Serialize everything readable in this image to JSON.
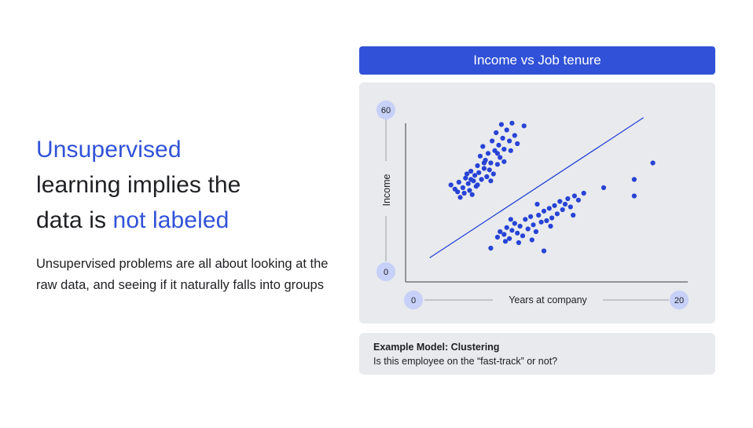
{
  "slide": {
    "heading_line1": "Unsupervised",
    "heading_line2": "learning implies the",
    "heading_line3_a": "data is ",
    "heading_line3_b": "not labeled",
    "body": "Unsupervised problems are all about looking at the raw data, and seeing if it naturally falls into groups"
  },
  "chart_header": "Income vs Job tenure",
  "caption": {
    "title": "Example Model: Clustering",
    "text": "Is this employee on the “fast-track” or not?"
  },
  "colors": {
    "accent": "#3152d8",
    "panel": "#e8eaed",
    "point": "#2743d6",
    "badge": "#c7d0f8"
  },
  "chart_data": {
    "type": "scatter",
    "xlabel": "Years at company",
    "ylabel": "Income",
    "xlim": [
      0,
      20
    ],
    "ylim": [
      0,
      60
    ],
    "x_ticks": [
      "0",
      "20"
    ],
    "y_ticks": [
      "0",
      "60"
    ],
    "grid": false,
    "legend": "none",
    "separator_line": {
      "x": [
        1.4,
        17.5
      ],
      "y": [
        6.5,
        57.5
      ]
    },
    "series": [
      {
        "points": [
          [
            3.0,
            33.0
          ],
          [
            3.3,
            31.5
          ],
          [
            3.5,
            30.5
          ],
          [
            3.6,
            34.0
          ],
          [
            3.7,
            28.5
          ],
          [
            3.9,
            32.0
          ],
          [
            4.0,
            30.0
          ],
          [
            4.1,
            35.5
          ],
          [
            4.2,
            37.0
          ],
          [
            4.3,
            33.5
          ],
          [
            4.4,
            31.0
          ],
          [
            4.5,
            38.0
          ],
          [
            4.6,
            29.5
          ],
          [
            4.7,
            34.5
          ],
          [
            4.8,
            36.5
          ],
          [
            4.9,
            32.5
          ],
          [
            5.0,
            40.0
          ],
          [
            5.1,
            37.5
          ],
          [
            5.2,
            43.5
          ],
          [
            5.3,
            35.0
          ],
          [
            5.4,
            47.0
          ],
          [
            5.5,
            39.0
          ],
          [
            5.6,
            42.0
          ],
          [
            5.7,
            36.0
          ],
          [
            5.8,
            44.5
          ],
          [
            5.9,
            38.5
          ],
          [
            6.0,
            41.0
          ],
          [
            6.1,
            49.0
          ],
          [
            6.2,
            37.0
          ],
          [
            6.3,
            45.5
          ],
          [
            6.4,
            52.0
          ],
          [
            6.5,
            40.5
          ],
          [
            6.6,
            47.5
          ],
          [
            6.7,
            43.0
          ],
          [
            6.8,
            55.0
          ],
          [
            6.9,
            50.0
          ],
          [
            7.0,
            46.0
          ],
          [
            7.2,
            53.0
          ],
          [
            7.4,
            49.0
          ],
          [
            7.6,
            55.5
          ],
          [
            7.8,
            51.0
          ],
          [
            8.0,
            48.0
          ],
          [
            4.5,
            35.0
          ],
          [
            5.0,
            33.0
          ],
          [
            5.5,
            41.0
          ],
          [
            6.0,
            34.5
          ],
          [
            6.5,
            44.5
          ],
          [
            7.0,
            41.5
          ],
          [
            7.5,
            45.5
          ],
          [
            8.5,
            54.5
          ]
        ]
      },
      {
        "points": [
          [
            6.5,
            14.0
          ],
          [
            6.7,
            16.0
          ],
          [
            7.0,
            15.0
          ],
          [
            7.2,
            17.5
          ],
          [
            7.4,
            13.5
          ],
          [
            7.6,
            16.5
          ],
          [
            7.8,
            19.0
          ],
          [
            8.0,
            15.5
          ],
          [
            8.2,
            18.0
          ],
          [
            8.4,
            14.5
          ],
          [
            8.6,
            20.5
          ],
          [
            8.8,
            17.0
          ],
          [
            9.0,
            21.5
          ],
          [
            9.2,
            18.5
          ],
          [
            9.4,
            16.0
          ],
          [
            9.6,
            22.0
          ],
          [
            9.8,
            19.5
          ],
          [
            10.0,
            23.5
          ],
          [
            10.2,
            20.0
          ],
          [
            10.4,
            24.5
          ],
          [
            10.6,
            21.0
          ],
          [
            10.8,
            25.5
          ],
          [
            11.0,
            22.5
          ],
          [
            11.2,
            27.0
          ],
          [
            11.4,
            24.0
          ],
          [
            11.6,
            26.0
          ],
          [
            11.8,
            28.0
          ],
          [
            12.0,
            25.0
          ],
          [
            12.3,
            29.0
          ],
          [
            12.6,
            27.5
          ],
          [
            13.0,
            30.0
          ],
          [
            7.1,
            12.5
          ],
          [
            8.1,
            12.0
          ],
          [
            9.1,
            13.0
          ],
          [
            6.0,
            10.0
          ],
          [
            7.5,
            20.5
          ],
          [
            9.5,
            26.0
          ],
          [
            10.5,
            18.0
          ],
          [
            12.2,
            22.0
          ],
          [
            14.5,
            32.0
          ],
          [
            16.8,
            35.0
          ],
          [
            16.8,
            29.0
          ],
          [
            18.2,
            41.0
          ],
          [
            10.0,
            9.0
          ]
        ]
      }
    ]
  }
}
